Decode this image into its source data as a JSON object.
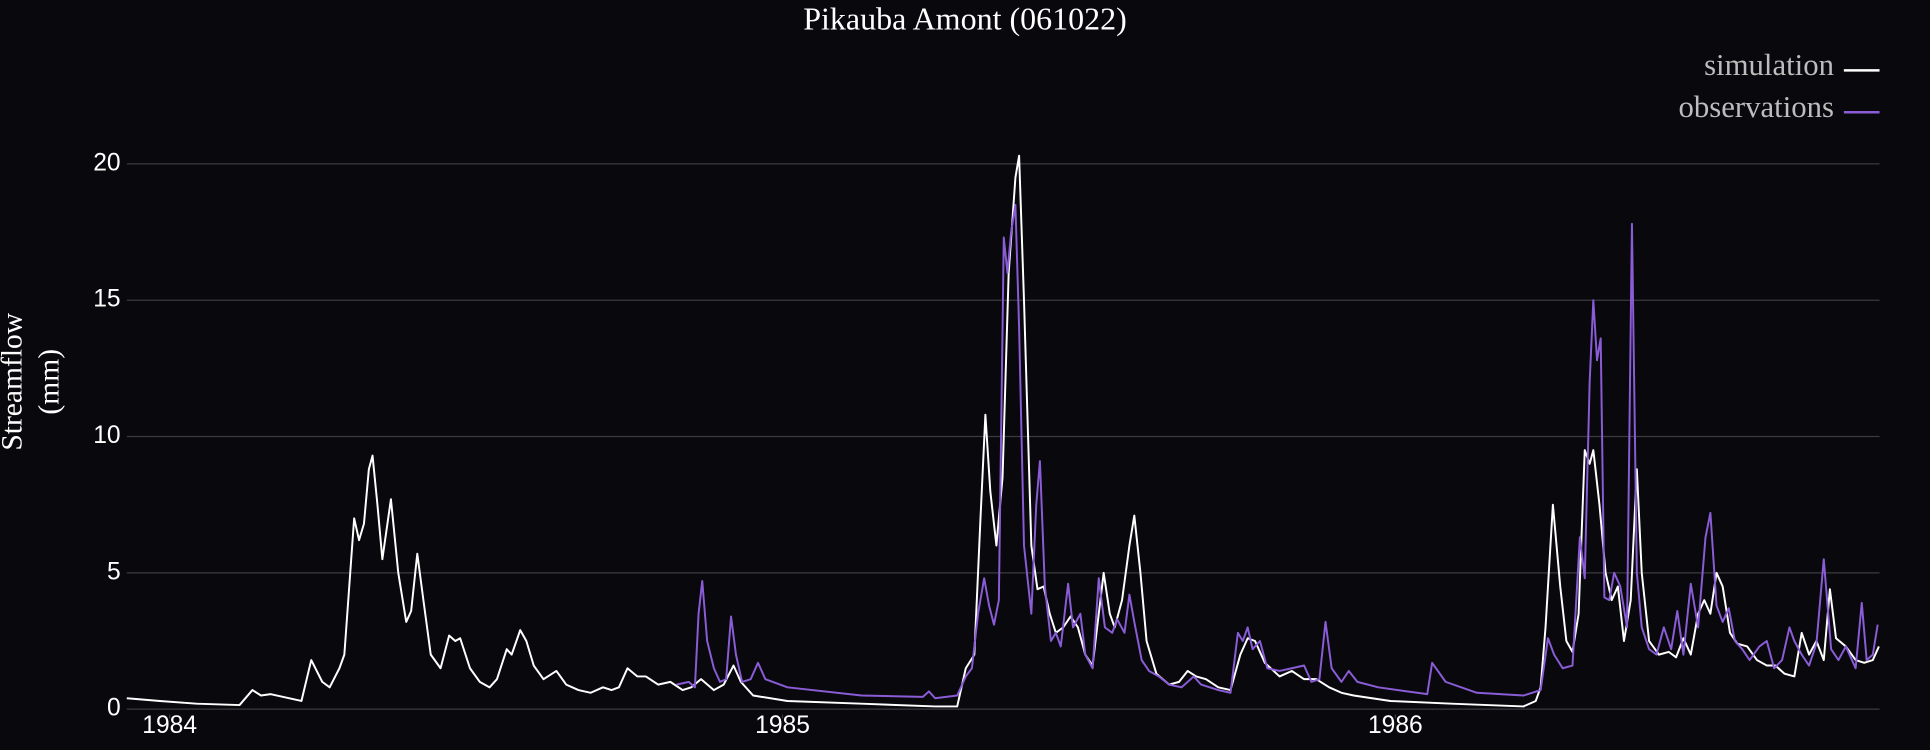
{
  "chart_data": {
    "type": "line",
    "title": "Pikauba Amont (061022)",
    "y_label": [
      "Streamflow",
      "(mm)"
    ],
    "xlim": [
      1983.93,
      1986.79
    ],
    "xticks": [
      1984,
      1985,
      1986
    ],
    "ylim": [
      -0.2,
      20.7
    ],
    "yticks": [
      0,
      5,
      10,
      15,
      20
    ],
    "grid": true,
    "legend": "top-right",
    "series": [
      {
        "name": "simulation",
        "color": "#ffffff",
        "x": [
          1983.93,
          1983.984,
          1984.044,
          1984.114,
          1984.135,
          1984.149,
          1984.165,
          1984.215,
          1984.231,
          1984.249,
          1984.261,
          1984.277,
          1984.285,
          1984.301,
          1984.309,
          1984.317,
          1984.325,
          1984.331,
          1984.339,
          1984.347,
          1984.361,
          1984.373,
          1984.386,
          1984.394,
          1984.404,
          1984.414,
          1984.426,
          1984.442,
          1984.456,
          1984.466,
          1984.474,
          1984.49,
          1984.506,
          1984.522,
          1984.534,
          1984.55,
          1984.558,
          1984.572,
          1984.582,
          1984.594,
          1984.61,
          1984.631,
          1984.647,
          1984.667,
          1984.687,
          1984.707,
          1984.721,
          1984.733,
          1984.747,
          1984.763,
          1984.777,
          1984.797,
          1984.817,
          1984.837,
          1984.851,
          1984.867,
          1984.888,
          1984.904,
          1984.92,
          1984.932,
          1984.952,
          1985.008,
          1985.129,
          1985.249,
          1985.285,
          1985.299,
          1985.313,
          1985.323,
          1985.331,
          1985.339,
          1985.349,
          1985.359,
          1985.369,
          1985.38,
          1985.386,
          1985.394,
          1985.406,
          1985.416,
          1985.426,
          1985.436,
          1985.446,
          1985.458,
          1985.47,
          1985.482,
          1985.494,
          1985.506,
          1985.516,
          1985.524,
          1985.534,
          1985.542,
          1985.554,
          1985.566,
          1985.574,
          1985.584,
          1985.594,
          1985.61,
          1985.631,
          1985.647,
          1985.661,
          1985.675,
          1985.691,
          1985.711,
          1985.731,
          1985.747,
          1985.759,
          1985.771,
          1985.787,
          1985.811,
          1985.831,
          1985.851,
          1985.871,
          1985.892,
          1985.912,
          1985.932,
          1985.992,
          1986.092,
          1986.209,
          1986.229,
          1986.237,
          1986.245,
          1986.257,
          1986.269,
          1986.279,
          1986.289,
          1986.299,
          1986.309,
          1986.317,
          1986.323,
          1986.333,
          1986.343,
          1986.353,
          1986.363,
          1986.373,
          1986.384,
          1986.394,
          1986.402,
          1986.414,
          1986.43,
          1986.446,
          1986.458,
          1986.47,
          1986.482,
          1986.494,
          1986.504,
          1986.514,
          1986.524,
          1986.534,
          1986.546,
          1986.558,
          1986.574,
          1986.59,
          1986.606,
          1986.62,
          1986.635,
          1986.651,
          1986.663,
          1986.675,
          1986.687,
          1986.699,
          1986.709,
          1986.719,
          1986.735,
          1986.751,
          1986.765,
          1986.779,
          1986.789
        ],
        "values": [
          0.4,
          0.3,
          0.2,
          0.15,
          0.7,
          0.5,
          0.55,
          0.3,
          1.8,
          1.0,
          0.8,
          1.5,
          2.0,
          7.0,
          6.2,
          6.8,
          8.8,
          9.3,
          7.5,
          5.5,
          7.7,
          5.0,
          3.2,
          3.6,
          5.7,
          4.0,
          2.0,
          1.5,
          2.7,
          2.5,
          2.6,
          1.5,
          1.0,
          0.8,
          1.1,
          2.2,
          2.0,
          2.9,
          2.5,
          1.6,
          1.1,
          1.4,
          0.9,
          0.7,
          0.6,
          0.8,
          0.7,
          0.8,
          1.5,
          1.2,
          1.2,
          0.9,
          1.0,
          0.7,
          0.8,
          1.1,
          0.7,
          0.9,
          1.6,
          1.0,
          0.5,
          0.3,
          0.2,
          0.1,
          0.1,
          1.5,
          2.0,
          7.0,
          10.8,
          8.0,
          6.0,
          8.5,
          16.0,
          19.5,
          20.3,
          15.0,
          6.0,
          4.4,
          4.5,
          3.5,
          2.8,
          3.0,
          3.4,
          3.0,
          2.0,
          1.6,
          3.5,
          5.0,
          3.5,
          3.0,
          4.0,
          6.0,
          7.1,
          5.0,
          2.5,
          1.3,
          0.9,
          1.0,
          1.4,
          1.2,
          1.1,
          0.8,
          0.7,
          2.0,
          2.6,
          2.5,
          1.7,
          1.2,
          1.4,
          1.1,
          1.1,
          0.8,
          0.6,
          0.5,
          0.3,
          0.2,
          0.1,
          0.3,
          0.8,
          3.0,
          7.5,
          4.5,
          2.5,
          2.1,
          3.5,
          9.5,
          9.0,
          9.5,
          7.5,
          5.0,
          4.0,
          4.5,
          2.5,
          4.0,
          8.8,
          5.0,
          2.5,
          2.0,
          2.1,
          1.9,
          2.6,
          2.0,
          3.5,
          4.0,
          3.5,
          5.0,
          4.5,
          2.8,
          2.4,
          2.3,
          1.8,
          1.6,
          1.6,
          1.3,
          1.2,
          2.8,
          2.0,
          2.5,
          1.8,
          4.4,
          2.6,
          2.3,
          1.8,
          1.7,
          1.8,
          2.3
        ]
      },
      {
        "name": "observations",
        "color": "#8a5cd6",
        "x": [
          1984.827,
          1984.847,
          1984.857,
          1984.863,
          1984.869,
          1984.877,
          1984.888,
          1984.898,
          1984.908,
          1984.916,
          1984.924,
          1984.934,
          1984.948,
          1984.96,
          1984.972,
          1985.008,
          1985.129,
          1985.229,
          1985.239,
          1985.249,
          1985.285,
          1985.299,
          1985.309,
          1985.319,
          1985.329,
          1985.337,
          1985.345,
          1985.353,
          1985.361,
          1985.367,
          1985.373,
          1985.38,
          1985.386,
          1985.394,
          1985.406,
          1985.414,
          1985.42,
          1985.428,
          1985.438,
          1985.446,
          1985.454,
          1985.466,
          1985.474,
          1985.486,
          1985.494,
          1985.506,
          1985.516,
          1985.526,
          1985.538,
          1985.546,
          1985.558,
          1985.566,
          1985.574,
          1985.586,
          1985.598,
          1985.614,
          1985.631,
          1985.651,
          1985.671,
          1985.683,
          1985.711,
          1985.731,
          1985.743,
          1985.751,
          1985.759,
          1985.767,
          1985.779,
          1985.791,
          1985.811,
          1985.831,
          1985.851,
          1985.863,
          1985.876,
          1985.886,
          1985.896,
          1985.912,
          1985.924,
          1985.938,
          1985.972,
          1986.052,
          1986.06,
          1986.082,
          1986.133,
          1986.209,
          1986.223,
          1986.237,
          1986.249,
          1986.259,
          1986.273,
          1986.289,
          1986.301,
          1986.309,
          1986.317,
          1986.323,
          1986.329,
          1986.335,
          1986.341,
          1986.349,
          1986.357,
          1986.367,
          1986.378,
          1986.386,
          1986.394,
          1986.402,
          1986.414,
          1986.426,
          1986.438,
          1986.45,
          1986.46,
          1986.47,
          1986.482,
          1986.494,
          1986.506,
          1986.514,
          1986.524,
          1986.534,
          1986.544,
          1986.554,
          1986.566,
          1986.578,
          1986.594,
          1986.606,
          1986.618,
          1986.631,
          1986.643,
          1986.651,
          1986.663,
          1986.675,
          1986.687,
          1986.699,
          1986.711,
          1986.723,
          1986.735,
          1986.751,
          1986.761,
          1986.769,
          1986.779,
          1986.787
        ],
        "values": [
          0.9,
          1.0,
          0.8,
          3.5,
          4.7,
          2.5,
          1.5,
          1.0,
          1.1,
          3.4,
          2.0,
          1.0,
          1.1,
          1.7,
          1.1,
          0.8,
          0.5,
          0.45,
          0.65,
          0.4,
          0.5,
          1.2,
          1.5,
          3.5,
          4.8,
          3.8,
          3.1,
          4.0,
          17.3,
          16.0,
          17.5,
          18.5,
          14.0,
          6.0,
          3.5,
          7.5,
          9.1,
          4.5,
          2.5,
          2.8,
          2.3,
          4.6,
          3.0,
          3.5,
          2.0,
          1.5,
          4.8,
          3.0,
          2.8,
          3.3,
          2.8,
          4.2,
          3.2,
          1.8,
          1.4,
          1.2,
          0.9,
          0.8,
          1.2,
          0.9,
          0.7,
          0.6,
          2.8,
          2.5,
          3.0,
          2.2,
          2.5,
          1.5,
          1.4,
          1.5,
          1.6,
          1.0,
          1.1,
          3.2,
          1.5,
          1.0,
          1.4,
          1.0,
          0.8,
          0.55,
          1.7,
          1.0,
          0.6,
          0.5,
          0.6,
          0.7,
          2.6,
          2.0,
          1.5,
          1.6,
          6.3,
          4.8,
          12.0,
          15.0,
          12.8,
          13.6,
          4.1,
          4.0,
          5.0,
          4.5,
          3.0,
          17.8,
          5.0,
          3.0,
          2.2,
          2.0,
          3.0,
          2.2,
          3.6,
          2.0,
          4.6,
          3.0,
          6.3,
          7.2,
          3.8,
          3.2,
          3.7,
          2.5,
          2.2,
          1.8,
          2.3,
          2.5,
          1.5,
          1.8,
          3.0,
          2.5,
          2.0,
          1.6,
          2.4,
          5.5,
          2.2,
          1.8,
          2.3,
          1.5,
          3.9,
          1.8,
          2.0,
          3.1
        ]
      }
    ]
  }
}
